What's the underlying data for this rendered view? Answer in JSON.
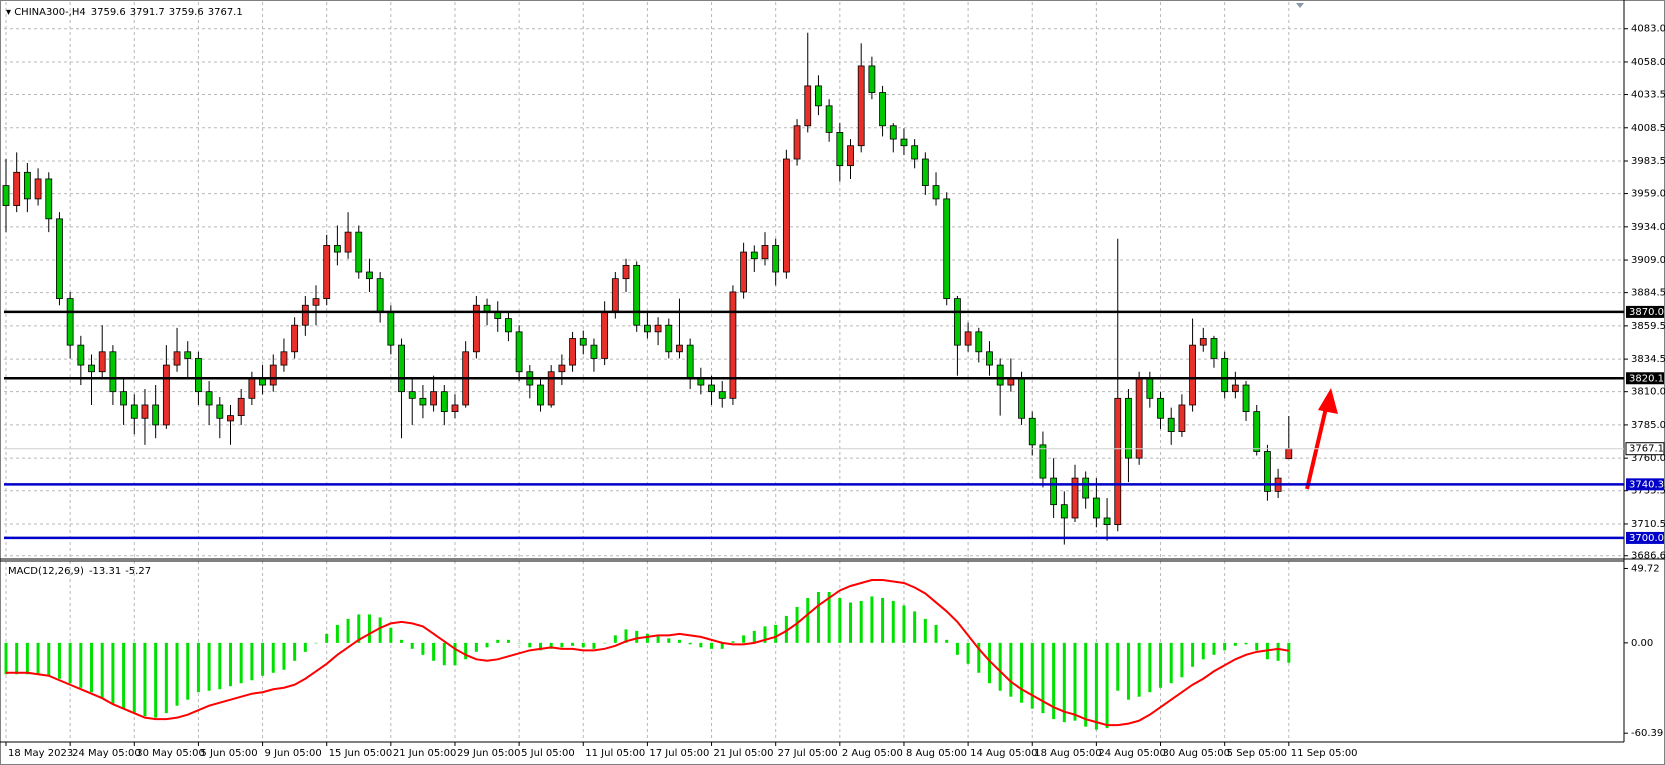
{
  "chart_data": {
    "type": "candlestick",
    "title": "CHINA300-,H4",
    "categories": [
      "18 May 2023",
      null,
      null,
      null,
      null,
      null,
      "24 May 05:00",
      null,
      null,
      null,
      null,
      null,
      "30 May 05:00",
      null,
      null,
      null,
      null,
      null,
      "5 Jun 05:00",
      null,
      null,
      null,
      null,
      null,
      "9 Jun 05:00",
      null,
      null,
      null,
      null,
      null,
      "15 Jun 05:00",
      null,
      null,
      null,
      null,
      null,
      "21 Jun 05:00",
      null,
      null,
      null,
      null,
      null,
      "29 Jun 05:00",
      null,
      null,
      null,
      null,
      null,
      "5 Jul 05:00",
      null,
      null,
      null,
      null,
      null,
      "11 Jul 05:00",
      null,
      null,
      null,
      null,
      null,
      "17 Jul 05:00",
      null,
      null,
      null,
      null,
      null,
      "21 Jul 05:00",
      null,
      null,
      null,
      null,
      null,
      "27 Jul 05:00",
      null,
      null,
      null,
      null,
      null,
      "2 Aug 05:00",
      null,
      null,
      null,
      null,
      null,
      "8 Aug 05:00",
      null,
      null,
      null,
      null,
      null,
      "14 Aug 05:00",
      null,
      null,
      null,
      null,
      null,
      "18 Aug 05:00",
      null,
      null,
      null,
      null,
      null,
      "24 Aug 05:00",
      null,
      null,
      null,
      null,
      null,
      "30 Aug 05:00",
      null,
      null,
      null,
      null,
      null,
      "5 Sep 05:00",
      null,
      null,
      null,
      null,
      null,
      "11 Sep 05:00"
    ],
    "candles": [
      [
        3965,
        3985,
        3930,
        3950
      ],
      [
        3950,
        3990,
        3945,
        3975
      ],
      [
        3975,
        3982,
        3945,
        3955
      ],
      [
        3955,
        3978,
        3950,
        3970
      ],
      [
        3970,
        3975,
        3930,
        3940
      ],
      [
        3940,
        3945,
        3875,
        3880
      ],
      [
        3880,
        3885,
        3835,
        3845
      ],
      [
        3845,
        3852,
        3815,
        3830
      ],
      [
        3830,
        3838,
        3800,
        3825
      ],
      [
        3825,
        3860,
        3820,
        3840
      ],
      [
        3840,
        3845,
        3800,
        3810
      ],
      [
        3810,
        3820,
        3785,
        3800
      ],
      [
        3800,
        3808,
        3778,
        3790
      ],
      [
        3790,
        3812,
        3770,
        3800
      ],
      [
        3800,
        3815,
        3775,
        3785
      ],
      [
        3785,
        3845,
        3782,
        3830
      ],
      [
        3830,
        3858,
        3825,
        3840
      ],
      [
        3840,
        3848,
        3820,
        3835
      ],
      [
        3835,
        3840,
        3800,
        3810
      ],
      [
        3810,
        3818,
        3785,
        3800
      ],
      [
        3800,
        3806,
        3775,
        3790
      ],
      [
        3788,
        3800,
        3770,
        3792
      ],
      [
        3792,
        3812,
        3785,
        3805
      ],
      [
        3805,
        3825,
        3800,
        3820
      ],
      [
        3820,
        3830,
        3808,
        3815
      ],
      [
        3815,
        3838,
        3810,
        3830
      ],
      [
        3830,
        3850,
        3825,
        3840
      ],
      [
        3840,
        3866,
        3835,
        3860
      ],
      [
        3860,
        3882,
        3852,
        3875
      ],
      [
        3875,
        3890,
        3860,
        3880
      ],
      [
        3880,
        3928,
        3875,
        3920
      ],
      [
        3920,
        3935,
        3905,
        3915
      ],
      [
        3915,
        3945,
        3910,
        3930
      ],
      [
        3930,
        3935,
        3895,
        3900
      ],
      [
        3900,
        3910,
        3885,
        3895
      ],
      [
        3895,
        3900,
        3862,
        3870
      ],
      [
        3870,
        3875,
        3838,
        3845
      ],
      [
        3845,
        3850,
        3775,
        3810
      ],
      [
        3810,
        3820,
        3785,
        3805
      ],
      [
        3805,
        3815,
        3790,
        3800
      ],
      [
        3800,
        3822,
        3795,
        3810
      ],
      [
        3810,
        3815,
        3785,
        3795
      ],
      [
        3795,
        3808,
        3790,
        3800
      ],
      [
        3800,
        3848,
        3798,
        3840
      ],
      [
        3840,
        3882,
        3835,
        3875
      ],
      [
        3875,
        3880,
        3860,
        3870
      ],
      [
        3870,
        3878,
        3855,
        3865
      ],
      [
        3865,
        3870,
        3848,
        3855
      ],
      [
        3855,
        3860,
        3818,
        3825
      ],
      [
        3825,
        3830,
        3805,
        3815
      ],
      [
        3815,
        3820,
        3795,
        3800
      ],
      [
        3800,
        3830,
        3798,
        3825
      ],
      [
        3825,
        3838,
        3815,
        3830
      ],
      [
        3830,
        3855,
        3825,
        3850
      ],
      [
        3850,
        3856,
        3838,
        3845
      ],
      [
        3845,
        3850,
        3825,
        3835
      ],
      [
        3835,
        3878,
        3830,
        3870
      ],
      [
        3870,
        3900,
        3865,
        3895
      ],
      [
        3895,
        3910,
        3885,
        3905
      ],
      [
        3905,
        3908,
        3855,
        3860
      ],
      [
        3860,
        3870,
        3850,
        3855
      ],
      [
        3855,
        3866,
        3845,
        3860
      ],
      [
        3860,
        3865,
        3835,
        3840
      ],
      [
        3840,
        3880,
        3835,
        3845
      ],
      [
        3845,
        3850,
        3812,
        3820
      ],
      [
        3820,
        3828,
        3808,
        3815
      ],
      [
        3815,
        3822,
        3800,
        3810
      ],
      [
        3810,
        3818,
        3798,
        3805
      ],
      [
        3805,
        3890,
        3800,
        3885
      ],
      [
        3885,
        3922,
        3880,
        3915
      ],
      [
        3915,
        3920,
        3900,
        3910
      ],
      [
        3910,
        3930,
        3905,
        3920
      ],
      [
        3920,
        3925,
        3890,
        3900
      ],
      [
        3900,
        3992,
        3895,
        3985
      ],
      [
        3985,
        4015,
        3980,
        4010
      ],
      [
        4010,
        4080,
        4005,
        4040
      ],
      [
        4040,
        4048,
        4018,
        4025
      ],
      [
        4025,
        4030,
        3998,
        4005
      ],
      [
        4005,
        4012,
        3968,
        3980
      ],
      [
        3980,
        4000,
        3970,
        3995
      ],
      [
        3995,
        4072,
        3990,
        4055
      ],
      [
        4055,
        4062,
        4030,
        4035
      ],
      [
        4035,
        4040,
        4002,
        4010
      ],
      [
        4010,
        4012,
        3990,
        4000
      ],
      [
        4000,
        4008,
        3988,
        3995
      ],
      [
        3995,
        4000,
        3978,
        3985
      ],
      [
        3985,
        3990,
        3958,
        3965
      ],
      [
        3965,
        3975,
        3950,
        3955
      ],
      [
        3955,
        3960,
        3875,
        3880
      ],
      [
        3880,
        3882,
        3822,
        3845
      ],
      [
        3845,
        3862,
        3840,
        3855
      ],
      [
        3855,
        3858,
        3832,
        3840
      ],
      [
        3840,
        3848,
        3822,
        3830
      ],
      [
        3830,
        3835,
        3792,
        3815
      ],
      [
        3815,
        3835,
        3810,
        3820
      ],
      [
        3820,
        3825,
        3785,
        3790
      ],
      [
        3790,
        3795,
        3762,
        3770
      ],
      [
        3770,
        3780,
        3738,
        3745
      ],
      [
        3745,
        3760,
        3715,
        3725
      ],
      [
        3725,
        3735,
        3695,
        3715
      ],
      [
        3715,
        3755,
        3712,
        3745
      ],
      [
        3745,
        3750,
        3722,
        3730
      ],
      [
        3730,
        3745,
        3708,
        3715
      ],
      [
        3715,
        3730,
        3698,
        3710
      ],
      [
        3710,
        3925,
        3705,
        3805
      ],
      [
        3805,
        3812,
        3742,
        3760
      ],
      [
        3760,
        3825,
        3755,
        3820
      ],
      [
        3820,
        3825,
        3798,
        3805
      ],
      [
        3805,
        3810,
        3782,
        3790
      ],
      [
        3790,
        3798,
        3770,
        3780
      ],
      [
        3780,
        3808,
        3776,
        3800
      ],
      [
        3800,
        3865,
        3795,
        3845
      ],
      [
        3845,
        3858,
        3840,
        3850
      ],
      [
        3850,
        3852,
        3828,
        3835
      ],
      [
        3835,
        3840,
        3805,
        3810
      ],
      [
        3810,
        3825,
        3805,
        3815
      ],
      [
        3815,
        3818,
        3788,
        3795
      ],
      [
        3795,
        3800,
        3762,
        3765
      ],
      [
        3765,
        3770,
        3728,
        3735
      ],
      [
        3735,
        3752,
        3730,
        3745
      ],
      [
        3759.6,
        3791.7,
        3759.6,
        3767.1
      ]
    ],
    "up_color": "#e8302a",
    "down_color": "#00c800",
    "ylim": [
      3684.9,
      4103.1
    ],
    "yticks": [
      {
        "value": 4083,
        "label": "4083.0"
      },
      {
        "value": 4058,
        "label": "4058.0"
      },
      4033.5,
      4008.5,
      3983.5,
      {
        "value": 3959,
        "label": "3959.0"
      },
      {
        "value": 3934,
        "label": "3934.0"
      },
      {
        "value": 3909,
        "label": "3909.0"
      },
      3884.5,
      3859.5,
      3834.5,
      {
        "value": 3810,
        "label": "3810.0"
      },
      {
        "value": 3785,
        "label": "3785.0"
      },
      {
        "value": 3760,
        "label": "3760.0"
      },
      3735.5,
      3710.5,
      3686.6
    ],
    "grid": true,
    "levels": [
      {
        "value": 3870,
        "label": "3870.0",
        "color": "#000000"
      },
      {
        "value": 3820.1,
        "color": "#000000"
      },
      {
        "value": 3740.3,
        "color": "#0000c8"
      },
      {
        "value": 3700,
        "label": "3700.0",
        "color": "#0000c8"
      }
    ],
    "macd": {
      "type": "macd",
      "title": "MACD(12,26,9)",
      "histogram": [
        -21,
        -21,
        -21,
        -21,
        -22,
        -24,
        -27,
        -30,
        -33,
        -37,
        -41,
        -44,
        -47,
        -49,
        -50,
        -47,
        -42,
        -38,
        -33,
        -32,
        -31,
        -29,
        -27,
        -25,
        -22,
        -20,
        -18,
        -12,
        -6,
        0,
        6,
        12,
        16,
        19,
        19,
        17,
        10,
        2,
        -4,
        -8,
        -12,
        -15,
        -15,
        -11,
        -6,
        -3,
        2,
        2,
        0,
        -3,
        -5,
        -4,
        -3,
        -2,
        -3,
        -4,
        0,
        5,
        9,
        8,
        6,
        5,
        3,
        2,
        -1,
        -3,
        -4,
        -4,
        1,
        5,
        8,
        11,
        12,
        18,
        24,
        30,
        34,
        34,
        30,
        27,
        28,
        31,
        30,
        28,
        25,
        21,
        16,
        12,
        2,
        -8,
        -14,
        -20,
        -27,
        -32,
        -36,
        -40,
        -44,
        -47,
        -51,
        -53,
        -52,
        -56,
        -58,
        -57,
        -32,
        -38,
        -36,
        -33,
        -30,
        -27,
        -23,
        -16,
        -11,
        -8,
        -5,
        -2,
        -1,
        -5,
        -11,
        -12,
        -13.31
      ],
      "signal": [
        -20,
        -20,
        -20,
        -21,
        -22,
        -25,
        -28,
        -31,
        -34,
        -37,
        -41,
        -44,
        -47,
        -50,
        -51,
        -51,
        -50,
        -48,
        -45,
        -42,
        -40,
        -38,
        -36,
        -34,
        -33,
        -31,
        -30,
        -28,
        -24,
        -19,
        -14,
        -8,
        -3,
        2,
        6,
        10,
        13,
        14,
        13,
        11,
        6,
        1,
        -4,
        -8,
        -11,
        -12,
        -11,
        -9,
        -7,
        -5,
        -4,
        -3,
        -4,
        -4,
        -5,
        -5,
        -4,
        -2,
        1,
        3,
        4,
        5,
        5,
        6,
        5,
        4,
        2,
        0,
        -1,
        -1,
        0,
        2,
        4,
        8,
        13,
        19,
        25,
        30,
        35,
        38,
        40,
        42,
        42,
        41,
        40,
        37,
        33,
        27,
        21,
        14,
        5,
        -4,
        -12,
        -19,
        -26,
        -31,
        -35,
        -39,
        -43,
        -46,
        -48,
        -51,
        -53,
        -55,
        -55,
        -54,
        -52,
        -48,
        -43,
        -38,
        -33,
        -28,
        -24,
        -19,
        -15,
        -11,
        -8,
        -6,
        -5,
        -4,
        -5.27
      ],
      "histogram_color": "#00e000",
      "signal_color": "#ff0000",
      "ylim": [
        -65.6,
        54.7
      ],
      "yticks": [
        49.72,
        {
          "value": 0,
          "label": "0.00"
        },
        -60.39
      ]
    }
  }
}
